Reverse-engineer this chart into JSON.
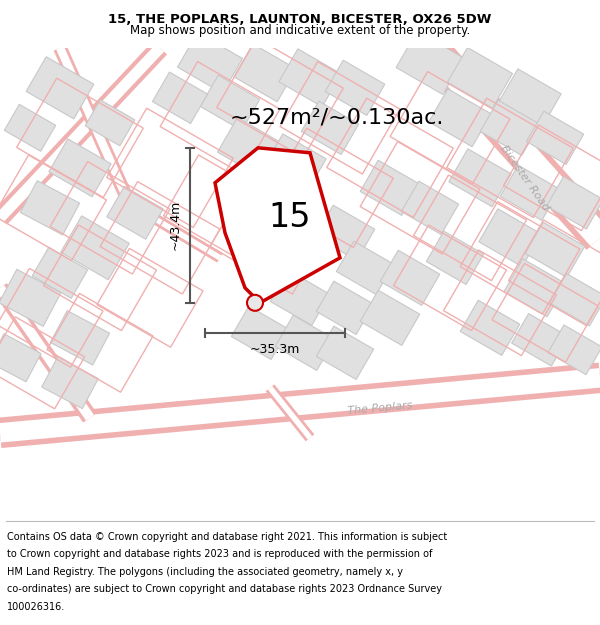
{
  "title": "15, THE POPLARS, LAUNTON, BICESTER, OX26 5DW",
  "subtitle": "Map shows position and indicative extent of the property.",
  "area_label": "~527m²/~0.130ac.",
  "property_number": "15",
  "dim_height": "~43.4m",
  "dim_width": "~35.3m",
  "map_bg": "#ffffff",
  "building_fill": "#e0e0e0",
  "building_edge": "#c8c8c8",
  "plot_outline_fill": "#f5f5f5",
  "plot_outline_color": "#cc0000",
  "road_outline_color": "#f0b0b0",
  "dim_line_color": "#555555",
  "bicester_road_label": "Bicester Road",
  "poplars_label": "The Poplars",
  "footer_lines": [
    "Contains OS data © Crown copyright and database right 2021. This information is subject",
    "to Crown copyright and database rights 2023 and is reproduced with the permission of",
    "HM Land Registry. The polygons (including the associated geometry, namely x, y",
    "co-ordinates) are subject to Crown copyright and database rights 2023 Ordnance Survey",
    "100026316."
  ],
  "title_fontsize": 9.5,
  "subtitle_fontsize": 8.5,
  "area_fontsize": 16,
  "number_fontsize": 24,
  "dim_fontsize": 9,
  "road_label_fontsize": 8,
  "footer_fontsize": 7.0
}
